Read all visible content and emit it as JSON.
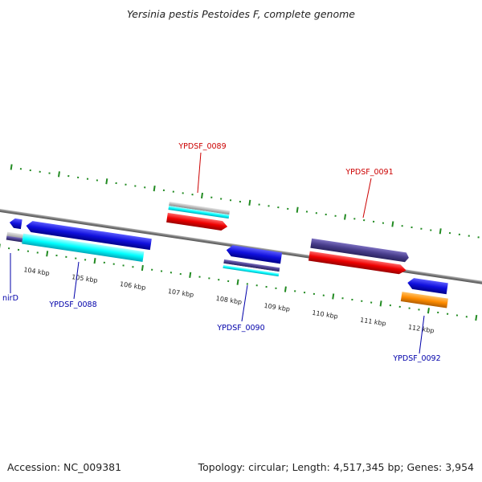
{
  "title": "Yersinia pestis Pestoides F, complete genome",
  "footer": {
    "accession": "Accession: NC_009381",
    "info": "Topology: circular; Length: 4,517,345 bp; Genes: 3,954"
  },
  "scale": {
    "tick_labels": [
      "104 kbp",
      "105 kbp",
      "106 kbp",
      "107 kbp",
      "108 kbp",
      "109 kbp",
      "110 kbp",
      "111 kbp",
      "112 kbp"
    ]
  },
  "genes": {
    "nirD": "nirD",
    "YPDSF_0088": "YPDSF_0088",
    "YPDSF_0089": "YPDSF_0089",
    "YPDSF_0090": "YPDSF_0090",
    "YPDSF_0091": "YPDSF_0091",
    "YPDSF_0092": "YPDSF_0092"
  },
  "colors": {
    "forward_label": "#cc0000",
    "reverse_label": "#0000aa",
    "tick": "#228b22",
    "backbone": "#888888",
    "blue": "#1010dd",
    "cyan": "#00e5ee",
    "red": "#ee0000",
    "navy": "#483d8b",
    "orange": "#ff8c00",
    "grey": "#b0b0b0"
  }
}
